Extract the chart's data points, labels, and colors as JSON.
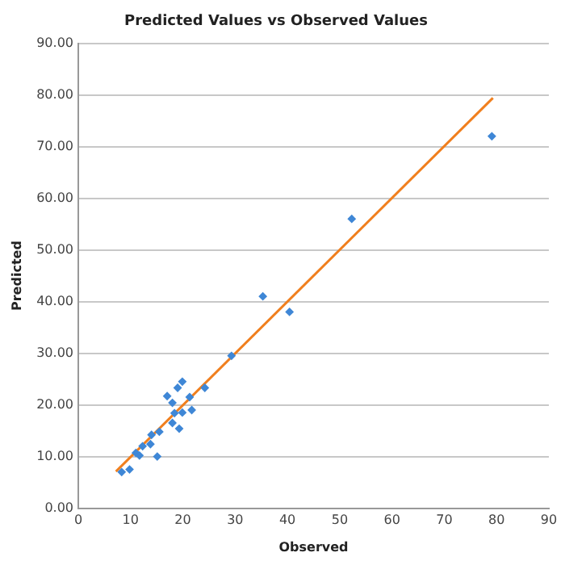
{
  "chart_data": {
    "type": "scatter",
    "title": "Predicted Values vs Observed Values",
    "xlabel": "Observed",
    "ylabel": "Predicted",
    "series": [
      {
        "marker": "diamond",
        "color": "#3f87d6",
        "x": [
          8.3,
          9.8,
          11.0,
          11.7,
          12.3,
          13.8,
          14.0,
          15.1,
          15.5,
          17.0,
          18.0,
          18.0,
          18.4,
          19.0,
          19.3,
          19.9,
          19.9,
          21.3,
          21.7,
          24.2,
          29.3,
          35.3,
          40.4,
          52.3,
          79.1
        ],
        "values": [
          7.0,
          7.5,
          10.7,
          10.2,
          12.0,
          12.4,
          14.2,
          10.0,
          14.8,
          21.7,
          20.4,
          16.5,
          18.4,
          23.3,
          15.4,
          24.5,
          18.5,
          21.5,
          19.0,
          23.3,
          29.5,
          41.0,
          38.0,
          56.0,
          72.0
        ]
      },
      {
        "type": "line",
        "color": "#f07f1e",
        "x": [
          7.2,
          79.3
        ],
        "values": [
          7.1,
          79.4
        ]
      }
    ],
    "xlim": [
      0,
      90
    ],
    "xticks": [
      0,
      10,
      20,
      30,
      40,
      50,
      60,
      70,
      80,
      90
    ],
    "ylim": [
      0,
      90
    ],
    "yticks": [
      {
        "value": 0,
        "label": "0.00"
      },
      {
        "value": 10,
        "label": "10.00"
      },
      {
        "value": 20,
        "label": "20.00"
      },
      {
        "value": 30,
        "label": "30.00"
      },
      {
        "value": 40,
        "label": "40.00"
      },
      {
        "value": 50,
        "label": "50.00"
      },
      {
        "value": 60,
        "label": "60.00"
      },
      {
        "value": 70,
        "label": "70.00"
      },
      {
        "value": 80,
        "label": "80.00"
      },
      {
        "value": 90,
        "label": "90.00"
      }
    ],
    "grid": "y"
  }
}
